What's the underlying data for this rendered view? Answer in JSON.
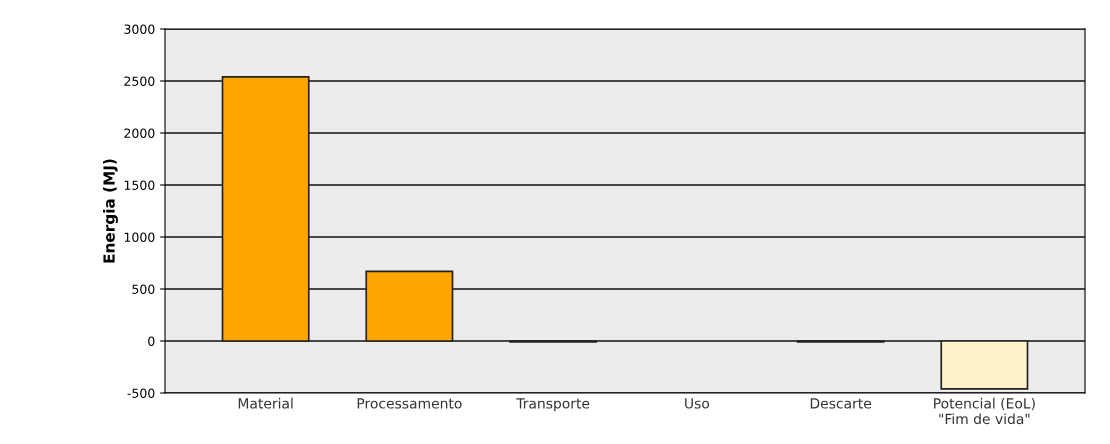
{
  "chart_data": {
    "type": "bar",
    "ylabel": "Energia (MJ)",
    "categories": [
      "Material",
      "Processamento",
      "Transporte",
      "Uso",
      "Descarte",
      "Potencial (EoL)\n\"Fim de vida\""
    ],
    "values": [
      2540,
      670,
      -10,
      null,
      -10,
      -460
    ],
    "colors": [
      "#ffa500",
      "#ffa500",
      "#ffa500",
      "#ffa500",
      "#ffa500",
      "#fdf3c8"
    ],
    "ylim": [
      -500,
      3000
    ],
    "yticks": [
      -500,
      0,
      500,
      1000,
      1500,
      2000,
      2500,
      3000
    ],
    "grid": "y",
    "legend": false
  }
}
